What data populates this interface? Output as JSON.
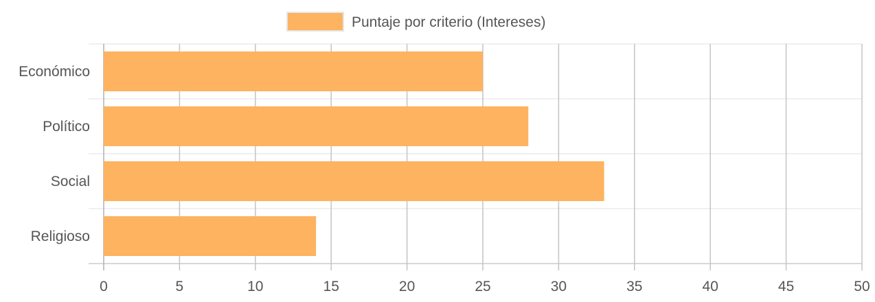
{
  "chart_data": {
    "type": "bar",
    "orientation": "horizontal",
    "categories": [
      "Económico",
      "Político",
      "Social",
      "Religioso"
    ],
    "series": [
      {
        "name": "Puntaje por criterio (Intereses)",
        "values": [
          25,
          28,
          33,
          14
        ],
        "color": "#FDB35F"
      }
    ],
    "xlim": [
      0,
      50
    ],
    "x_ticks": [
      "0",
      "5",
      "10",
      "15",
      "20",
      "25",
      "30",
      "35",
      "40",
      "45",
      "50"
    ],
    "grid": true,
    "legend_position": "top"
  },
  "colors": {
    "bar_fill": "#FDB35F",
    "grid": "#e0e0e0",
    "text": "#555555"
  }
}
